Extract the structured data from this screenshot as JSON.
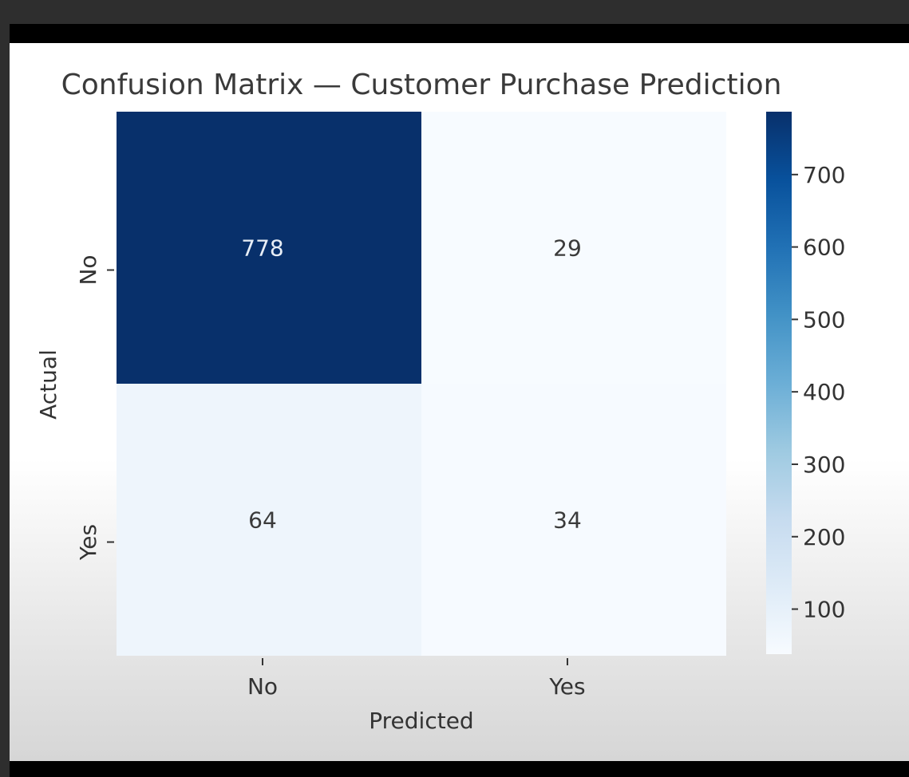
{
  "chart_data": {
    "type": "heatmap",
    "title": "Confusion Matrix — Customer Purchase Prediction",
    "xlabel": "Predicted",
    "ylabel": "Actual",
    "x_categories": [
      "No",
      "Yes"
    ],
    "y_categories": [
      "No",
      "Yes"
    ],
    "values": [
      [
        778,
        29
      ],
      [
        64,
        34
      ]
    ],
    "colormap": "Blues",
    "colorbar": {
      "ticks": [
        100,
        200,
        300,
        400,
        500,
        600,
        700
      ],
      "range": [
        29,
        778
      ]
    },
    "grid": false
  }
}
